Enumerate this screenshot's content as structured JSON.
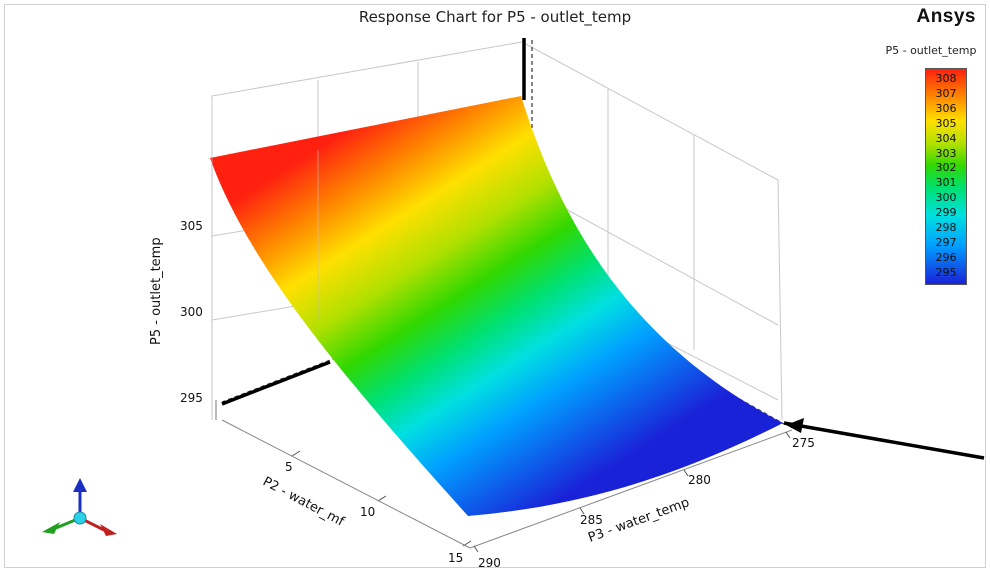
{
  "header": {
    "title": "Response Chart for P5 - outlet_temp",
    "logo": "Ansys"
  },
  "colorbar": {
    "title": "P5 - outlet_temp",
    "ticks": [
      "308",
      "307",
      "306",
      "305",
      "304",
      "303",
      "302",
      "301",
      "300",
      "299",
      "298",
      "297",
      "296",
      "295"
    ],
    "colors": [
      "#1a22d8",
      "#00a0ff",
      "#00e0e0",
      "#00e070",
      "#30d800",
      "#b0e000",
      "#ffe000",
      "#ff8000",
      "#ff2010"
    ]
  },
  "chart_data": {
    "type": "surface",
    "title": "Response Chart for P5 - outlet_temp",
    "x_axis": {
      "label": "P2 - water_mf",
      "ticks": [
        "5",
        "10",
        "15"
      ],
      "range": [
        1,
        15
      ]
    },
    "y_axis": {
      "label": "P3 - water_temp",
      "ticks": [
        "275",
        "280",
        "285",
        "290"
      ],
      "range": [
        275,
        290
      ]
    },
    "z_axis": {
      "label": "P5 - outlet_temp",
      "ticks": [
        "295",
        "300",
        "305"
      ],
      "range": [
        293,
        309
      ]
    },
    "corners": [
      {
        "water_mf": 1,
        "water_temp": 290,
        "outlet_temp": 308
      },
      {
        "water_mf": 1,
        "water_temp": 275,
        "outlet_temp": 308.5
      },
      {
        "water_mf": 15,
        "water_temp": 275,
        "outlet_temp": 294.5
      },
      {
        "water_mf": 15,
        "water_temp": 290,
        "outlet_temp": 295
      }
    ],
    "colorbar_range": [
      294.5,
      308.5
    ]
  },
  "triad": {
    "icon": "coordinate-triad-icon"
  }
}
